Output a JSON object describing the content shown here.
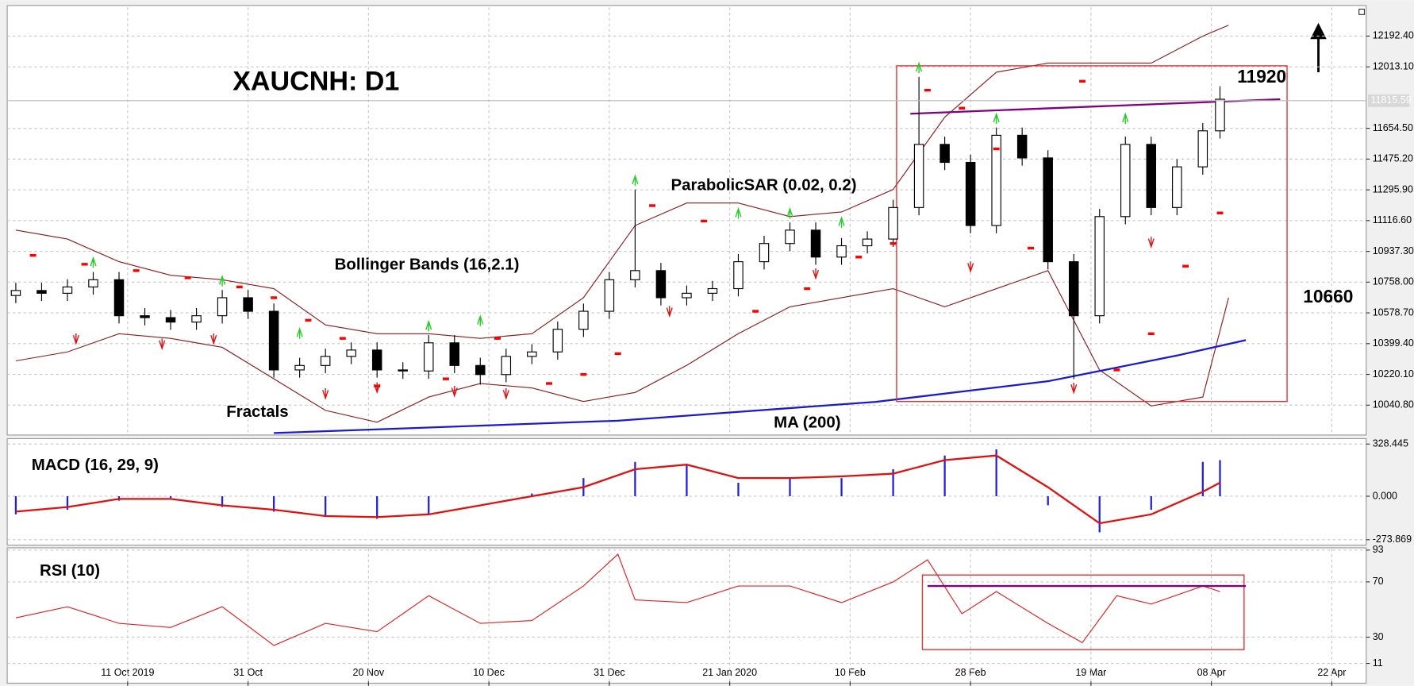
{
  "chart_data": [
    {
      "type": "candlestick",
      "title": "XAUCNH: D1",
      "x": [
        0,
        3,
        6,
        9,
        12,
        15,
        18,
        21,
        24,
        27,
        30,
        33,
        36,
        39,
        42,
        45,
        48,
        51,
        54,
        57,
        60,
        63,
        66,
        69,
        72,
        75,
        78,
        81,
        84,
        87,
        90,
        93,
        96,
        99,
        102,
        105,
        108,
        111,
        114,
        117,
        120,
        123,
        126,
        129,
        132,
        135,
        138,
        140
      ],
      "open": [
        10680,
        10709,
        10693,
        10730,
        10772,
        10562,
        10551,
        10525,
        10562,
        10667,
        10588,
        10246,
        10272,
        10325,
        10362,
        10246,
        10240,
        10404,
        10272,
        10219,
        10325,
        10351,
        10483,
        10588,
        10772,
        10825,
        10667,
        10693,
        10720,
        10877,
        10983,
        11061,
        10904,
        10970,
        11009,
        11193,
        11561,
        11456,
        11088,
        11614,
        11482,
        10877,
        10562,
        11140,
        11561,
        11193,
        11430,
        11640
      ],
      "high": [
        10754,
        10754,
        10775,
        10817,
        10817,
        10607,
        10596,
        10607,
        10712,
        10712,
        10633,
        10317,
        10370,
        10407,
        10407,
        10291,
        10449,
        10449,
        10317,
        10370,
        10396,
        10528,
        10633,
        10817,
        11298,
        10870,
        10738,
        10765,
        10922,
        11028,
        11106,
        11106,
        11015,
        11054,
        11238,
        11955,
        11606,
        11501,
        11659,
        11659,
        11527,
        10922,
        11185,
        11606,
        11606,
        11475,
        11685,
        11900
      ],
      "low": [
        10635,
        10648,
        10648,
        10685,
        10517,
        10506,
        10480,
        10480,
        10517,
        10543,
        10201,
        10201,
        10227,
        10280,
        10201,
        10195,
        10195,
        10227,
        10160,
        10174,
        10280,
        10306,
        10438,
        10543,
        10727,
        10622,
        10622,
        10648,
        10675,
        10832,
        10938,
        10859,
        10859,
        10925,
        10964,
        11148,
        11411,
        11043,
        11043,
        11437,
        10832,
        10193,
        10517,
        11095,
        11148,
        11148,
        11385,
        11595
      ],
      "close": [
        10709,
        10693,
        10730,
        10772,
        10562,
        10551,
        10525,
        10562,
        10667,
        10588,
        10246,
        10272,
        10325,
        10362,
        10246,
        10240,
        10404,
        10272,
        10219,
        10325,
        10351,
        10483,
        10588,
        10772,
        10825,
        10667,
        10693,
        10720,
        10877,
        10983,
        11061,
        10904,
        10970,
        11009,
        11193,
        11561,
        11456,
        11088,
        11614,
        11482,
        10877,
        10562,
        11140,
        11561,
        11193,
        11430,
        11640,
        11824
      ],
      "up_color": "#ffffff",
      "down_color": "#000000",
      "xlim": [
        -1,
        157
      ],
      "xticks": [
        {
          "value": 13,
          "label": "11 Oct 2019"
        },
        {
          "value": 27,
          "label": "31 Oct"
        },
        {
          "value": 41,
          "label": "20 Nov"
        },
        {
          "value": 55,
          "label": "10 Dec"
        },
        {
          "value": 69,
          "label": "31 Dec"
        },
        {
          "value": 83,
          "label": "21 Jan 2020"
        },
        {
          "value": 97,
          "label": "10 Feb"
        },
        {
          "value": 111,
          "label": "28 Feb"
        },
        {
          "value": 125,
          "label": "19 Mar"
        },
        {
          "value": 139,
          "label": "08 Apr"
        },
        {
          "value": 153,
          "label": "22 Apr"
        }
      ],
      "ylim": [
        9877,
        12360
      ],
      "yticks": [
        {
          "value": 12192.4,
          "label": "12192.40"
        },
        {
          "value": 12013.1,
          "label": "12013.10"
        },
        {
          "value": 11654.5,
          "label": "11654.50"
        },
        {
          "value": 11475.2,
          "label": "11475.20"
        },
        {
          "value": 11295.9,
          "label": "11295.90"
        },
        {
          "value": 11116.6,
          "label": "11116.60"
        },
        {
          "value": 10937.3,
          "label": "10937.30"
        },
        {
          "value": 10758,
          "label": "10758.00"
        },
        {
          "value": 10578.7,
          "label": "10578.70"
        },
        {
          "value": 10399.4,
          "label": "10399.40"
        },
        {
          "value": 10220.1,
          "label": "10220.10"
        },
        {
          "value": 10040.8,
          "label": "10040.80"
        }
      ],
      "grid": true,
      "last_price": {
        "value": 11815.59,
        "label": "11815.59"
      },
      "targets": [
        11920,
        10660
      ],
      "ma": {
        "name": "MA (200)",
        "color": "#1a1ad0",
        "x": [
          30,
          45,
          70,
          100,
          120,
          135,
          143
        ],
        "values": [
          9878,
          9905,
          9950,
          10060,
          10180,
          10330,
          10420
        ]
      },
      "bollinger": {
        "name": "Bollinger Bands (16,2.1)",
        "color": "#8b1a1a",
        "x": [
          0,
          6,
          12,
          18,
          24,
          30,
          36,
          42,
          48,
          54,
          60,
          66,
          72,
          78,
          84,
          90,
          96,
          102,
          108,
          114,
          120,
          126,
          132,
          138,
          141
        ],
        "upper": [
          11061,
          11009,
          10877,
          10798,
          10772,
          10720,
          10509,
          10457,
          10457,
          10430,
          10457,
          10667,
          11088,
          11219,
          11219,
          11140,
          11167,
          11298,
          11719,
          11982,
          12035,
          12035,
          12035,
          12192,
          12256
        ],
        "lower": [
          10299,
          10351,
          10457,
          10430,
          10378,
          10194,
          10010,
          9941,
          10088,
          10167,
          10141,
          10062,
          10115,
          10273,
          10457,
          10614,
          10667,
          10720,
          10614,
          10720,
          10825,
          10246,
          10036,
          10088,
          10667
        ]
      },
      "sar": {
        "name": "ParabolicSAR (0.02, 0.2)",
        "color": "#ff0000",
        "x": [
          2,
          8,
          14,
          20,
          26,
          30,
          34,
          38,
          42,
          50,
          56,
          62,
          66,
          70,
          74,
          80,
          86,
          92,
          98,
          102,
          106,
          110,
          114,
          118,
          124,
          128,
          132,
          136,
          140
        ],
        "values": [
          10914,
          10862,
          10825,
          10783,
          10730,
          10667,
          10536,
          10430,
          10152,
          10194,
          10430,
          10167,
          10220,
          10341,
          11204,
          11114,
          10588,
          10720,
          10904,
          10983,
          11877,
          11772,
          11535,
          10956,
          11929,
          10246,
          10457,
          10851,
          11161
        ]
      },
      "fractals": {
        "name": "Fractals",
        "up_color": "#22cc22",
        "down_color": "#dd1111",
        "up_x": [
          9,
          24,
          33,
          48,
          54,
          72,
          84,
          90,
          96,
          105,
          114,
          129
        ],
        "up_values": [
          10820,
          10712,
          10407,
          10449,
          10480,
          11298,
          11106,
          11106,
          11054,
          11955,
          11659,
          11659
        ],
        "down_x": [
          7,
          17,
          23,
          36,
          42,
          51,
          57,
          76,
          93,
          111,
          123,
          132
        ],
        "down_values": [
          10480,
          10450,
          10480,
          10160,
          10195,
          10174,
          10160,
          10640,
          10860,
          10900,
          10193,
          11043
        ]
      },
      "resistance": {
        "color": "#800080",
        "x": [
          104,
          147
        ],
        "values": [
          11740,
          11824
        ]
      },
      "box": {
        "color": "#e03030",
        "xlim": [
          102.4,
          147.8
        ],
        "ylim": [
          10062,
          12019
        ]
      }
    },
    {
      "type": "macd",
      "title": "MACD (16, 29, 9)",
      "x": [
        0,
        6,
        12,
        18,
        24,
        30,
        36,
        42,
        48,
        54,
        60,
        66,
        72,
        78,
        84,
        90,
        96,
        102,
        108,
        114,
        120,
        126,
        132,
        138,
        140
      ],
      "histogram": [
        -114,
        -85,
        -28,
        -11,
        -68,
        -97,
        -125,
        -142,
        -114,
        0,
        17,
        114,
        216,
        199,
        85,
        114,
        114,
        170,
        256,
        295,
        -57,
        -227,
        -85,
        216,
        227
      ],
      "signal": [
        -97,
        -68,
        -17,
        -17,
        -57,
        -85,
        -125,
        -131,
        -114,
        -57,
        0,
        57,
        170,
        199,
        114,
        114,
        125,
        142,
        227,
        256,
        57,
        -170,
        -114,
        28,
        85
      ],
      "histogram_color": "#2020e0",
      "signal_color": "#e01010",
      "xlim": [
        -1,
        157
      ],
      "ylim": [
        -302,
        351
      ],
      "yticks": [
        {
          "value": 328.445,
          "label": "328.445"
        },
        {
          "value": 0,
          "label": "0.000"
        },
        {
          "value": -273.869,
          "label": "-273.869"
        }
      ]
    },
    {
      "type": "rsi",
      "title": "RSI (10)",
      "x": [
        0,
        6,
        12,
        18,
        24,
        30,
        36,
        42,
        48,
        54,
        60,
        66,
        70,
        72,
        78,
        84,
        90,
        96,
        102,
        106,
        110,
        114,
        120,
        124,
        128,
        132,
        138,
        140
      ],
      "values": [
        44,
        52,
        40,
        37,
        52,
        24,
        40,
        34,
        60,
        40,
        42,
        67,
        90,
        57,
        55,
        67,
        67,
        55,
        70,
        86,
        47,
        63,
        40,
        26,
        60,
        54,
        67,
        63
      ],
      "color": "#e02020",
      "xlim": [
        -1,
        157
      ],
      "ylim": [
        -2,
        94
      ],
      "yticks": [
        93,
        70,
        30,
        11
      ],
      "level": {
        "color": "#800080",
        "x": [
          106,
          143
        ],
        "values": [
          67,
          67
        ]
      },
      "box": {
        "color": "#e03030",
        "xlim": [
          105.4,
          142.8
        ],
        "ylim": [
          21,
          75
        ]
      }
    }
  ]
}
